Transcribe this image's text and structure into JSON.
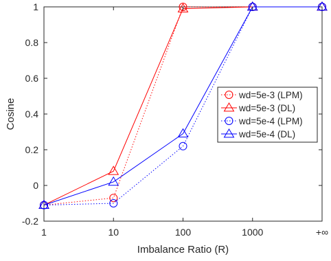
{
  "chart_data": {
    "type": "line",
    "xlabel": "Imbalance Ratio (R)",
    "ylabel": "Cosine",
    "categories": [
      "1",
      "10",
      "100",
      "1000",
      "+∞"
    ],
    "y_ticks": [
      "-0.2",
      "0",
      "0.2",
      "0.4",
      "0.6",
      "0.8",
      "1"
    ],
    "ylim": [
      -0.2,
      1
    ],
    "grid": false,
    "legend_position": "right",
    "series": [
      {
        "name": "wd=5e-3 (LPM)",
        "color": "#ff0000",
        "line_style": "dotted",
        "marker": "circle",
        "values": [
          -0.11,
          -0.07,
          1.0,
          1.0,
          1.0
        ]
      },
      {
        "name": "wd=5e-3 (DL)",
        "color": "#ff0000",
        "line_style": "solid",
        "marker": "triangle",
        "values": [
          -0.11,
          0.08,
          0.99,
          1.0,
          1.0
        ]
      },
      {
        "name": "wd=5e-4 (LPM)",
        "color": "#0000ff",
        "line_style": "dotted",
        "marker": "circle",
        "values": [
          -0.11,
          -0.1,
          0.22,
          1.0,
          1.0
        ]
      },
      {
        "name": "wd=5e-4 (DL)",
        "color": "#0000ff",
        "line_style": "solid",
        "marker": "triangle",
        "values": [
          -0.11,
          0.02,
          0.29,
          1.0,
          1.0
        ]
      }
    ]
  }
}
